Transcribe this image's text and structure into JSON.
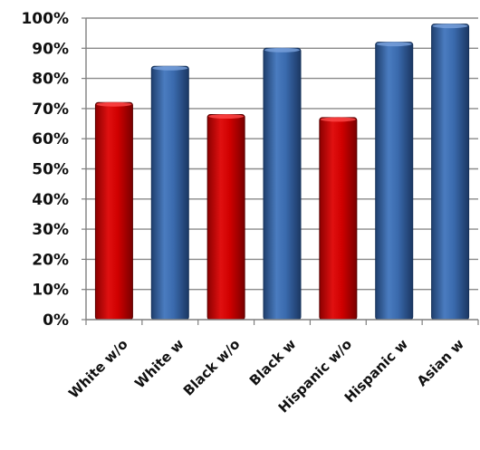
{
  "chart_data": {
    "type": "bar",
    "categories": [
      "White w/o",
      "White w",
      "Black w/o",
      "Black w",
      "Hispanic w/o",
      "Hispanic w",
      "Asian w"
    ],
    "values": [
      72,
      84,
      68,
      90,
      67,
      92,
      98
    ],
    "bar_colors": [
      "#c00000",
      "#2f5f9e",
      "#c00000",
      "#2f5f9e",
      "#c00000",
      "#2f5f9e",
      "#2f5f9e"
    ],
    "y_ticks": [
      "0%",
      "10%",
      "20%",
      "30%",
      "40%",
      "50%",
      "60%",
      "70%",
      "80%",
      "90%",
      "100%"
    ],
    "ylim": [
      0,
      100
    ],
    "grid": true,
    "title": "",
    "xlabel": "",
    "ylabel": ""
  },
  "colors": {
    "red": "#c00000",
    "blue": "#2f5f9e",
    "grid": "#8a8a8a",
    "axis": "#7f7f7f"
  }
}
